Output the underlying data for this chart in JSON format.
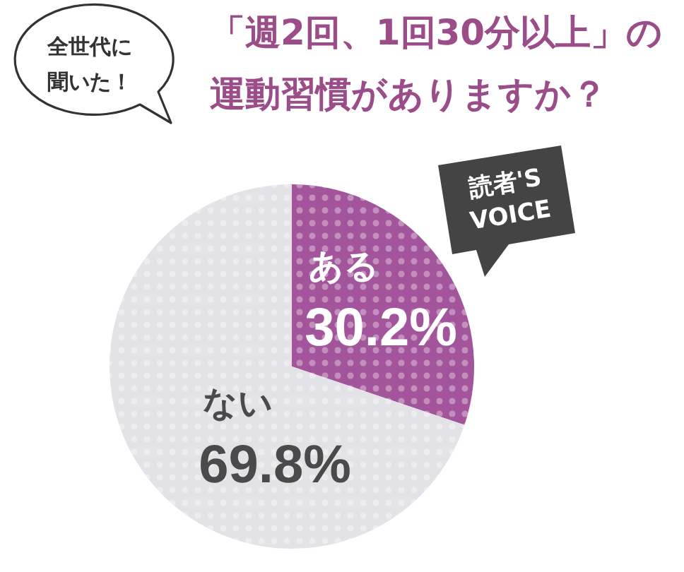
{
  "chart_data": {
    "type": "pie",
    "title": "「週2回、1回30分以上」の運動習慣がありますか？",
    "categories": [
      "ある",
      "ない"
    ],
    "values": [
      30.2,
      69.8
    ],
    "colors": [
      "#a3559b",
      "#e3e3e7"
    ],
    "value_labels": [
      "30.2%",
      "69.8%"
    ],
    "annotations": [
      "全世代に聞いた！",
      "読者'S VOICE"
    ]
  }
}
